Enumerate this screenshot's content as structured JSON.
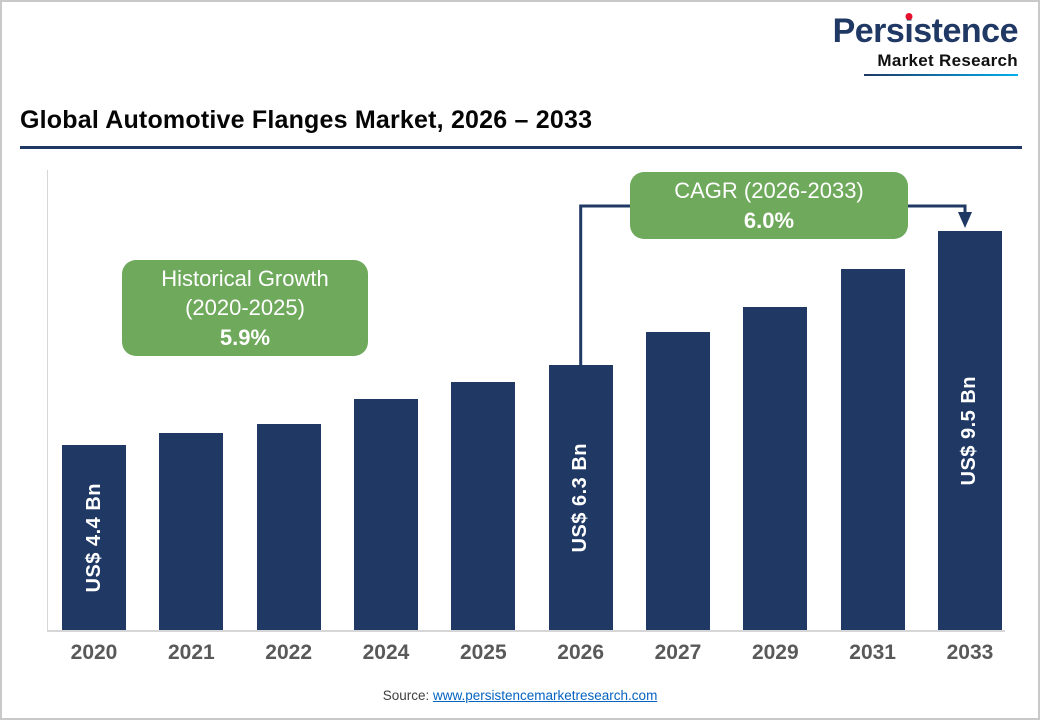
{
  "logo": {
    "name": "Persistence",
    "subtitle": "Market Research"
  },
  "header": {
    "title": "Global Automotive Flanges Market, 2026 – 2033"
  },
  "chart_data": {
    "type": "bar",
    "title": "Global Automotive Flanges Market, 2026 – 2033",
    "categories": [
      "2020",
      "2021",
      "2022",
      "2024",
      "2025",
      "2026",
      "2027",
      "2029",
      "2031",
      "2033"
    ],
    "values": [
      4.4,
      4.7,
      4.9,
      5.5,
      5.9,
      6.3,
      7.1,
      7.7,
      8.6,
      9.5
    ],
    "unit": "US$ Bn",
    "ylim": [
      0,
      10
    ],
    "grid": false,
    "legend": false,
    "bar_labels": {
      "2020": "US$ 4.4 Bn",
      "2026": "US$ 6.3 Bn",
      "2033": "US$ 9.5 Bn"
    },
    "callouts": {
      "historical": {
        "label": "Historical Growth (2020-2025)",
        "value": "5.9%"
      },
      "cagr": {
        "label": "CAGR (2026-2033)",
        "value": "6.0%"
      }
    }
  },
  "footer": {
    "source_label": "Source:",
    "source_link": "www.persistencemarketresearch.com"
  },
  "colors": {
    "bar": "#1F3864",
    "navy": "#1F3864",
    "green": "#6FA95C",
    "link": "#0563C1"
  }
}
